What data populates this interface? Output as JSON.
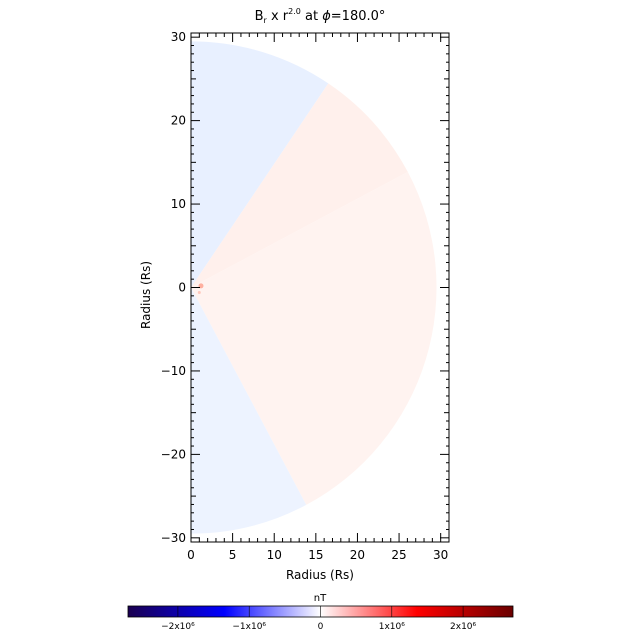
{
  "chart_data": {
    "type": "heatmap",
    "title": {
      "base": "B",
      "sub": "r",
      "mid": " x r",
      "sup": "2.0",
      "tail": " at ",
      "phi": "ϕ",
      "value": "=180.0°"
    },
    "xlabel": "Radius (Rs)",
    "ylabel": "Radius (Rs)",
    "xlim": [
      0,
      31
    ],
    "ylim": [
      -30.5,
      30.5
    ],
    "xticks": [
      0,
      5,
      10,
      15,
      20,
      25,
      30
    ],
    "yticks": [
      -30,
      -20,
      -10,
      0,
      10,
      20,
      30
    ],
    "domain_outer_radius": 29.5,
    "sectors": [
      {
        "from_deg": 56,
        "to_deg": 90,
        "color": "#e8f0ff"
      },
      {
        "from_deg": 28,
        "to_deg": 56,
        "color": "#fff0ec"
      },
      {
        "from_deg": -62,
        "to_deg": 28,
        "color": "#fff3f0"
      },
      {
        "from_deg": -90,
        "to_deg": -62,
        "color": "#edf3ff"
      }
    ],
    "colorbar": {
      "label": "nT",
      "tick_values": [
        -2000000,
        -1000000,
        0,
        1000000,
        2000000
      ],
      "tick_labels": [
        "−2x10⁶",
        "−1x10⁶",
        "0",
        "1x10⁶",
        "2x10⁶"
      ],
      "vmin": -2700000,
      "vmax": 2700000,
      "colors": [
        "#1a0050",
        "#0000ff",
        "#ffffff",
        "#ff0000",
        "#6a0000"
      ]
    }
  }
}
